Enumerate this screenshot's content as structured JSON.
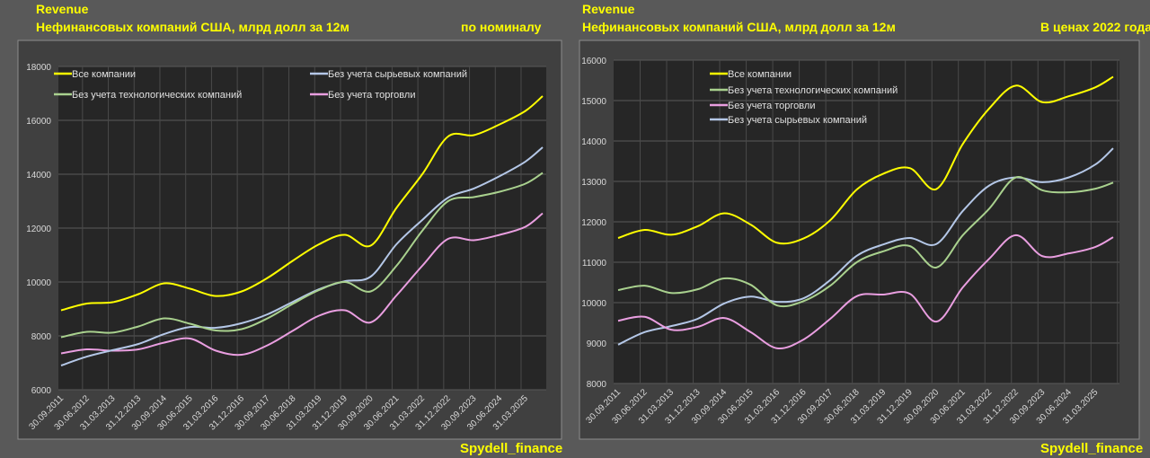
{
  "colors": {
    "all": "#ffff00",
    "ex_tech": "#a9d18e",
    "ex_raw": "#b4c7e7",
    "ex_trade": "#e99ee0",
    "title": "#ffff00"
  },
  "chart_data": [
    {
      "type": "line",
      "title": "Revenue",
      "subtitle": "Нефинансовых компаний США, млрд долл за 12м",
      "note": "по номиналу",
      "watermark": "Spydell_finance",
      "ylim": [
        6000,
        18000
      ],
      "y_ticks": [
        "6000",
        "8000",
        "10000",
        "12000",
        "14000",
        "16000",
        "18000"
      ],
      "x_tick_labels": [
        "30.09.2011",
        "30.06.2012",
        "31.03.2013",
        "31.12.2013",
        "30.09.2014",
        "30.06.2015",
        "31.03.2016",
        "31.12.2016",
        "30.09.2017",
        "30.06.2018",
        "31.03.2019",
        "31.12.2019",
        "30.09.2020",
        "30.06.2021",
        "31.03.2022",
        "31.12.2022",
        "30.09.2023",
        "30.06.2024",
        "31.03.2025"
      ],
      "x": [
        "30.09.2011",
        "30.06.2012",
        "31.03.2013",
        "31.12.2013",
        "30.09.2014",
        "30.06.2015",
        "31.03.2016",
        "31.12.2016",
        "30.09.2017",
        "30.06.2018",
        "31.03.2019",
        "31.12.2019",
        "30.09.2020",
        "30.06.2021",
        "31.03.2022",
        "31.12.2022",
        "30.09.2023",
        "30.06.2024",
        "31.03.2025",
        "30.09.2025"
      ],
      "grid": true,
      "legend": "top",
      "series": [
        {
          "name": "Все компании",
          "key": "all",
          "values": [
            8950,
            9200,
            9250,
            9550,
            9950,
            9750,
            9480,
            9650,
            10150,
            10800,
            11400,
            11750,
            11350,
            12750,
            14000,
            15400,
            15450,
            15850,
            16350,
            16900
          ]
        },
        {
          "name": "Без учета технологических компаний",
          "key": "ex_tech",
          "values": [
            7950,
            8150,
            8120,
            8350,
            8650,
            8450,
            8200,
            8250,
            8650,
            9200,
            9700,
            10000,
            9650,
            10600,
            11900,
            13000,
            13150,
            13350,
            13650,
            14050
          ]
        },
        {
          "name": "Без учета сырьевых компаний",
          "key": "ex_raw",
          "values": [
            6900,
            7230,
            7470,
            7700,
            8070,
            8330,
            8300,
            8470,
            8800,
            9270,
            9730,
            10030,
            10200,
            11400,
            12300,
            13130,
            13470,
            13930,
            14470,
            15000
          ]
        },
        {
          "name": "Без учета торговли",
          "key": "ex_trade",
          "values": [
            7350,
            7500,
            7450,
            7500,
            7750,
            7900,
            7450,
            7300,
            7650,
            8200,
            8750,
            8950,
            8500,
            9500,
            10600,
            11600,
            11550,
            11750,
            12050,
            12550
          ]
        }
      ]
    },
    {
      "type": "line",
      "title": "Revenue",
      "subtitle": "Нефинансовых компаний США, млрд долл за 12м",
      "note": "В ценах 2022 года",
      "watermark": "Spydell_finance",
      "ylim": [
        8000,
        16000
      ],
      "y_ticks": [
        "8000",
        "9000",
        "10000",
        "11000",
        "12000",
        "13000",
        "14000",
        "15000",
        "16000"
      ],
      "x_tick_labels": [
        "30.09.2011",
        "30.06.2012",
        "31.03.2013",
        "31.12.2013",
        "30.09.2014",
        "30.06.2015",
        "31.03.2016",
        "31.12.2016",
        "30.09.2017",
        "30.06.2018",
        "31.03.2019",
        "31.12.2019",
        "30.09.2020",
        "30.06.2021",
        "31.03.2022",
        "31.12.2022",
        "30.09.2023",
        "30.06.2024",
        "31.03.2025"
      ],
      "x": [
        "30.09.2011",
        "30.06.2012",
        "31.03.2013",
        "31.12.2013",
        "30.09.2014",
        "30.06.2015",
        "31.03.2016",
        "31.12.2016",
        "30.09.2017",
        "30.06.2018",
        "31.03.2019",
        "31.12.2019",
        "30.09.2020",
        "30.06.2021",
        "31.03.2022",
        "31.12.2022",
        "30.09.2023",
        "30.06.2024",
        "31.03.2025",
        "30.09.2025"
      ],
      "grid": true,
      "legend": "top",
      "series": [
        {
          "name": "Все компании",
          "key": "all",
          "values": [
            11600,
            11800,
            11680,
            11890,
            12210,
            11930,
            11480,
            11590,
            12040,
            12800,
            13190,
            13330,
            12810,
            13930,
            14810,
            15370,
            14960,
            15110,
            15330,
            15590
          ]
        },
        {
          "name": "Без учета технологических компаний",
          "key": "ex_tech",
          "values": [
            10310,
            10420,
            10240,
            10330,
            10600,
            10440,
            9930,
            10040,
            10420,
            11000,
            11270,
            11400,
            10870,
            11670,
            12330,
            13100,
            12780,
            12730,
            12820,
            12970
          ]
        },
        {
          "name": "Без учета торговли",
          "key": "ex_trade",
          "values": [
            9550,
            9650,
            9330,
            9400,
            9620,
            9270,
            8870,
            9090,
            9600,
            10160,
            10200,
            10220,
            9530,
            10380,
            11090,
            11670,
            11150,
            11220,
            11380,
            11620
          ]
        },
        {
          "name": "Без учета сырьевых компаний",
          "key": "ex_raw",
          "values": [
            8960,
            9270,
            9420,
            9600,
            9980,
            10150,
            10020,
            10110,
            10560,
            11160,
            11440,
            11600,
            11450,
            12270,
            12900,
            13100,
            12980,
            13100,
            13420,
            13820
          ]
        }
      ]
    }
  ]
}
